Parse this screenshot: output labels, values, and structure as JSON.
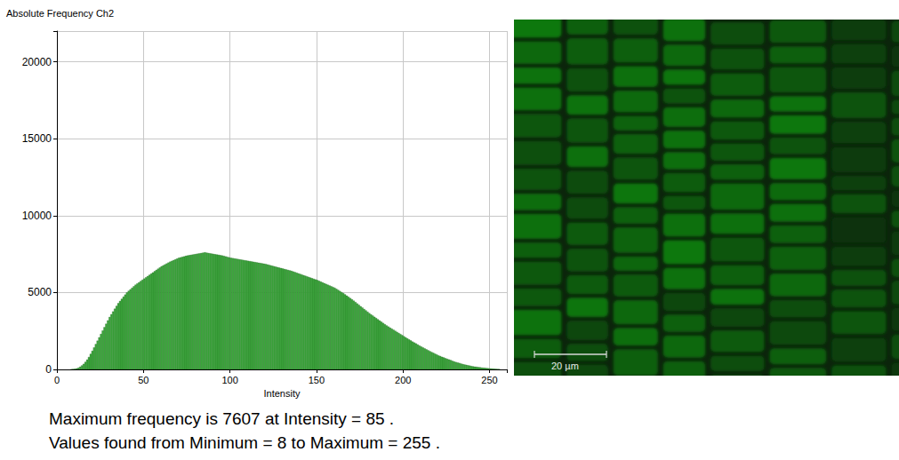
{
  "chart_data": {
    "type": "histogram",
    "title": "Absolute Frequency Ch2",
    "x_label": "Intensity",
    "bins": [
      0,
      1,
      2,
      3,
      4,
      5,
      6,
      7,
      8,
      9,
      10,
      11,
      12,
      13,
      14,
      15,
      16,
      17,
      18,
      19,
      20,
      21,
      22,
      23,
      24,
      25,
      26,
      27,
      28,
      29,
      30,
      31,
      32,
      33,
      34,
      35,
      36,
      37,
      38,
      39,
      40,
      41,
      42,
      43,
      44,
      45,
      46,
      47,
      48,
      49,
      50,
      51,
      52,
      53,
      54,
      55,
      56,
      57,
      58,
      59,
      60,
      61,
      62,
      63,
      64,
      65,
      66,
      67,
      68,
      69,
      70,
      71,
      72,
      73,
      74,
      75,
      76,
      77,
      78,
      79,
      80,
      81,
      82,
      83,
      84,
      85,
      86,
      87,
      88,
      89,
      90,
      91,
      92,
      93,
      94,
      95,
      96,
      97,
      98,
      99,
      100,
      101,
      102,
      103,
      104,
      105,
      106,
      107,
      108,
      109,
      110,
      111,
      112,
      113,
      114,
      115,
      116,
      117,
      118,
      119,
      120,
      121,
      122,
      123,
      124,
      125,
      126,
      127,
      128,
      129,
      130,
      131,
      132,
      133,
      134,
      135,
      136,
      137,
      138,
      139,
      140,
      141,
      142,
      143,
      144,
      145,
      146,
      147,
      148,
      149,
      150,
      151,
      152,
      153,
      154,
      155,
      156,
      157,
      158,
      159,
      160,
      161,
      162,
      163,
      164,
      165,
      166,
      167,
      168,
      169,
      170,
      171,
      172,
      173,
      174,
      175,
      176,
      177,
      178,
      179,
      180,
      181,
      182,
      183,
      184,
      185,
      186,
      187,
      188,
      189,
      190,
      191,
      192,
      193,
      194,
      195,
      196,
      197,
      198,
      199,
      200,
      201,
      202,
      203,
      204,
      205,
      206,
      207,
      208,
      209,
      210,
      211,
      212,
      213,
      214,
      215,
      216,
      217,
      218,
      219,
      220,
      221,
      222,
      223,
      224,
      225,
      226,
      227,
      228,
      229,
      230,
      231,
      232,
      233,
      234,
      235,
      236,
      237,
      238,
      239,
      240,
      241,
      242,
      243,
      244,
      245,
      246,
      247,
      248,
      249,
      250,
      251,
      252,
      253,
      254,
      255,
      256
    ],
    "values": [
      0,
      0,
      0,
      0,
      0,
      0,
      0,
      0,
      5,
      15,
      30,
      60,
      100,
      170,
      250,
      350,
      480,
      630,
      800,
      1000,
      1200,
      1420,
      1640,
      1860,
      2080,
      2300,
      2520,
      2740,
      2960,
      3180,
      3400,
      3580,
      3760,
      3940,
      4120,
      4300,
      4440,
      4580,
      4720,
      4860,
      5000,
      5100,
      5200,
      5300,
      5400,
      5500,
      5580,
      5660,
      5740,
      5820,
      5900,
      5980,
      6060,
      6140,
      6220,
      6300,
      6380,
      6460,
      6540,
      6620,
      6700,
      6760,
      6820,
      6880,
      6940,
      7000,
      7050,
      7100,
      7150,
      7200,
      7250,
      7280,
      7310,
      7340,
      7370,
      7400,
      7420,
      7440,
      7460,
      7480,
      7500,
      7520,
      7540,
      7560,
      7580,
      7607,
      7580,
      7560,
      7540,
      7520,
      7500,
      7480,
      7460,
      7440,
      7420,
      7400,
      7370,
      7340,
      7310,
      7280,
      7250,
      7230,
      7210,
      7190,
      7170,
      7150,
      7130,
      7110,
      7090,
      7070,
      7050,
      7030,
      7010,
      6990,
      6970,
      6950,
      6930,
      6910,
      6890,
      6870,
      6850,
      6820,
      6790,
      6760,
      6730,
      6700,
      6670,
      6640,
      6610,
      6580,
      6550,
      6520,
      6490,
      6460,
      6430,
      6400,
      6360,
      6320,
      6280,
      6240,
      6200,
      6160,
      6120,
      6080,
      6040,
      6000,
      5960,
      5920,
      5880,
      5840,
      5800,
      5750,
      5700,
      5650,
      5600,
      5550,
      5500,
      5450,
      5400,
      5350,
      5300,
      5230,
      5160,
      5090,
      5020,
      4950,
      4870,
      4790,
      4710,
      4630,
      4550,
      4460,
      4370,
      4280,
      4190,
      4100,
      4010,
      3920,
      3830,
      3740,
      3650,
      3570,
      3490,
      3410,
      3330,
      3250,
      3170,
      3090,
      3010,
      2930,
      2850,
      2780,
      2710,
      2640,
      2570,
      2500,
      2430,
      2360,
      2290,
      2220,
      2150,
      2080,
      2010,
      1940,
      1870,
      1800,
      1740,
      1680,
      1610,
      1540,
      1480,
      1420,
      1360,
      1300,
      1240,
      1180,
      1120,
      1070,
      1010,
      960,
      900,
      860,
      810,
      770,
      720,
      680,
      640,
      600,
      550,
      510,
      470,
      440,
      410,
      370,
      340,
      310,
      290,
      260,
      240,
      210,
      190,
      170,
      160,
      140,
      130,
      110,
      100,
      90,
      75,
      65,
      55,
      45,
      35,
      25,
      15,
      10
    ],
    "color": "#3cab3c",
    "xlim": [
      0,
      260
    ],
    "xticks": [
      0,
      50,
      100,
      150,
      200,
      250
    ],
    "ylim": [
      0,
      22000
    ],
    "yticks": [
      0,
      5000,
      10000,
      15000,
      20000
    ],
    "grid": true
  },
  "image": {
    "scale_bar": "20 µm"
  },
  "notes": [
    "Maximum frequency is 7607 at Intensity = 85 .",
    "Values found from Minimum = 8  to Maximum = 255 ."
  ]
}
